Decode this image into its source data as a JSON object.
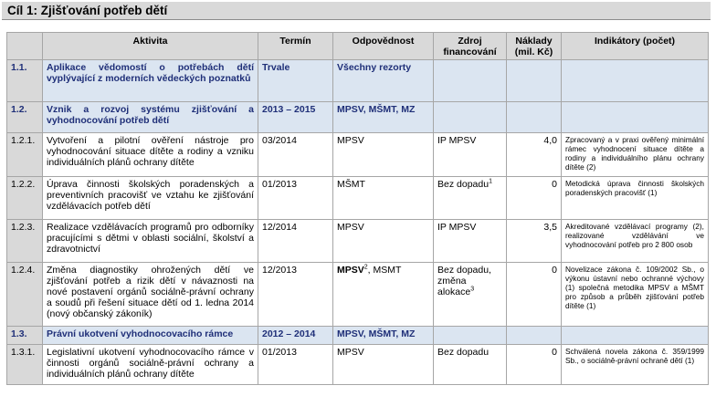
{
  "heading": "Cíl 1: Zjišťování potřeb dětí",
  "columns": {
    "activity": "Aktivita",
    "term": "Termín",
    "responsibility": "Odpovědnost",
    "funding": "Zdroj financování",
    "costs": "Náklady (mil. Kč)",
    "indicators": "Indikátory (počet)"
  },
  "rows": [
    {
      "num": "1.1.",
      "activity": "Aplikace vědomostí o potřebách dětí vyplývající z moderních vědeckých poznatků",
      "term": "Trvale",
      "resp": "Všechny rezorty",
      "resp_sup": "",
      "resp_rest": "",
      "funding": "",
      "funding_sup": "",
      "cost": "",
      "indicator": ""
    },
    {
      "num": "1.2.",
      "activity": "Vznik a rozvoj systému zjišťování a vyhodnocování potřeb dětí",
      "term": "2013 – 2015",
      "resp": "MPSV, MŠMT, MZ",
      "resp_sup": "",
      "resp_rest": "",
      "funding": "",
      "funding_sup": "",
      "cost": "",
      "indicator": ""
    },
    {
      "num": "1.2.1.",
      "activity": "Vytvoření a pilotní ověření nástroje pro vyhodnocování situace dítěte a rodiny a vzniku individuálních plánů ochrany dítěte",
      "term": "03/2014",
      "resp": "MPSV",
      "resp_sup": "",
      "resp_rest": "",
      "funding": "IP MPSV",
      "funding_sup": "",
      "cost": "4,0",
      "indicator": "Zpracovaný a v praxi ověřený minimální rámec vyhodnocení situace dítěte a rodiny a individuálního plánu ochrany dítěte (2)"
    },
    {
      "num": "1.2.2.",
      "activity": "Úprava činnosti školských poradenských a preventivních pracovišť ve vztahu ke zjišťování vzdělávacích potřeb dětí",
      "term": "01/2013",
      "resp": "MŠMT",
      "resp_sup": "",
      "resp_rest": "",
      "funding": "Bez dopadu",
      "funding_sup": "1",
      "cost": "0",
      "indicator": "Metodická úprava činnosti školských poradenských pracovišť (1)"
    },
    {
      "num": "1.2.3.",
      "activity": "Realizace vzdělávacích programů pro odborníky pracujícími s dětmi v oblasti sociální, školství a zdravotnictví",
      "term": "12/2014",
      "resp": "MPSV",
      "resp_sup": "",
      "resp_rest": "",
      "funding": "IP MPSV",
      "funding_sup": "",
      "cost": "3,5",
      "indicator": "Akreditované vzdělávací programy (2), realizované vzdělávání ve vyhodnocování potřeb pro 2 800 osob"
    },
    {
      "num": "1.2.4.",
      "activity": "Změna diagnostiky ohrožených dětí ve zjišťování potřeb a rizik dětí v návaznosti na nové postavení orgánů sociálně-právní ochrany a soudů při řešení situace dětí od 1. ledna 2014 (nový občanský zákoník)",
      "term": "12/2013",
      "resp": "MPSV",
      "resp_sup": "2",
      "resp_rest": ", MSMT",
      "funding": "Bez dopadu, změna alokace",
      "funding_sup": "3",
      "cost": "0",
      "indicator": "Novelizace zákona č. 109/2002 Sb., o výkonu ústavní nebo ochranné výchovy (1) společná metodika MPSV a MŠMT pro způsob a průběh zjišťování potřeb dítěte (1)"
    },
    {
      "num": "1.3.",
      "activity": "Právní ukotvení vyhodnocovacího rámce",
      "term": "2012 – 2014",
      "resp": "MPSV, MŠMT, MZ",
      "resp_sup": "",
      "resp_rest": "",
      "funding": "",
      "funding_sup": "",
      "cost": "",
      "indicator": ""
    },
    {
      "num": "1.3.1.",
      "activity": "Legislativní ukotvení vyhodnocovacího rámce v činnosti orgánů sociálně-právní ochrany a individuálních plánů ochrany dítěte",
      "term": "01/2013",
      "resp": "MPSV",
      "resp_sup": "",
      "resp_rest": "",
      "funding": "Bez dopadu",
      "funding_sup": "",
      "cost": "0",
      "indicator": "Schválená novela zákona č. 359/1999 Sb., o sociálně-právní ochraně dětí (1)"
    }
  ]
}
